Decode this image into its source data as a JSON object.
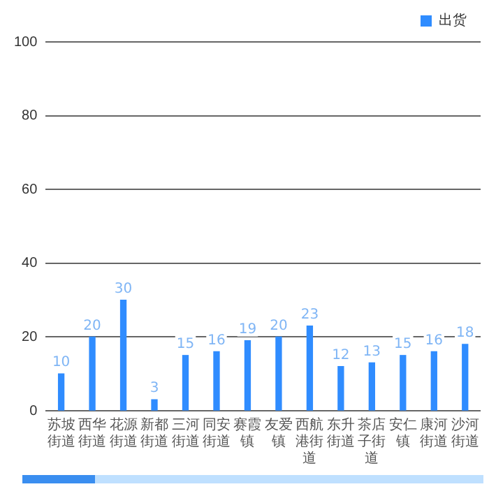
{
  "chart_data": {
    "type": "bar",
    "categories": [
      "苏坡街道",
      "西华街道",
      "花源街道",
      "新都街道",
      "三河街道",
      "同安街道",
      "赛霞镇",
      "友爱镇",
      "西航港街道",
      "东升街道",
      "茶店子街道",
      "安仁镇",
      "康河街道",
      "沙河街道"
    ],
    "series": [
      {
        "name": "出货",
        "color": "#2f8cff",
        "values": [
          10,
          20,
          30,
          3,
          15,
          16,
          19,
          20,
          23,
          12,
          13,
          15,
          16,
          18
        ]
      }
    ],
    "ylim": [
      0,
      100
    ],
    "yticks": [
      0,
      20,
      40,
      60,
      80,
      100
    ],
    "grid": "y",
    "legend": "top right",
    "data_labels": true
  }
}
